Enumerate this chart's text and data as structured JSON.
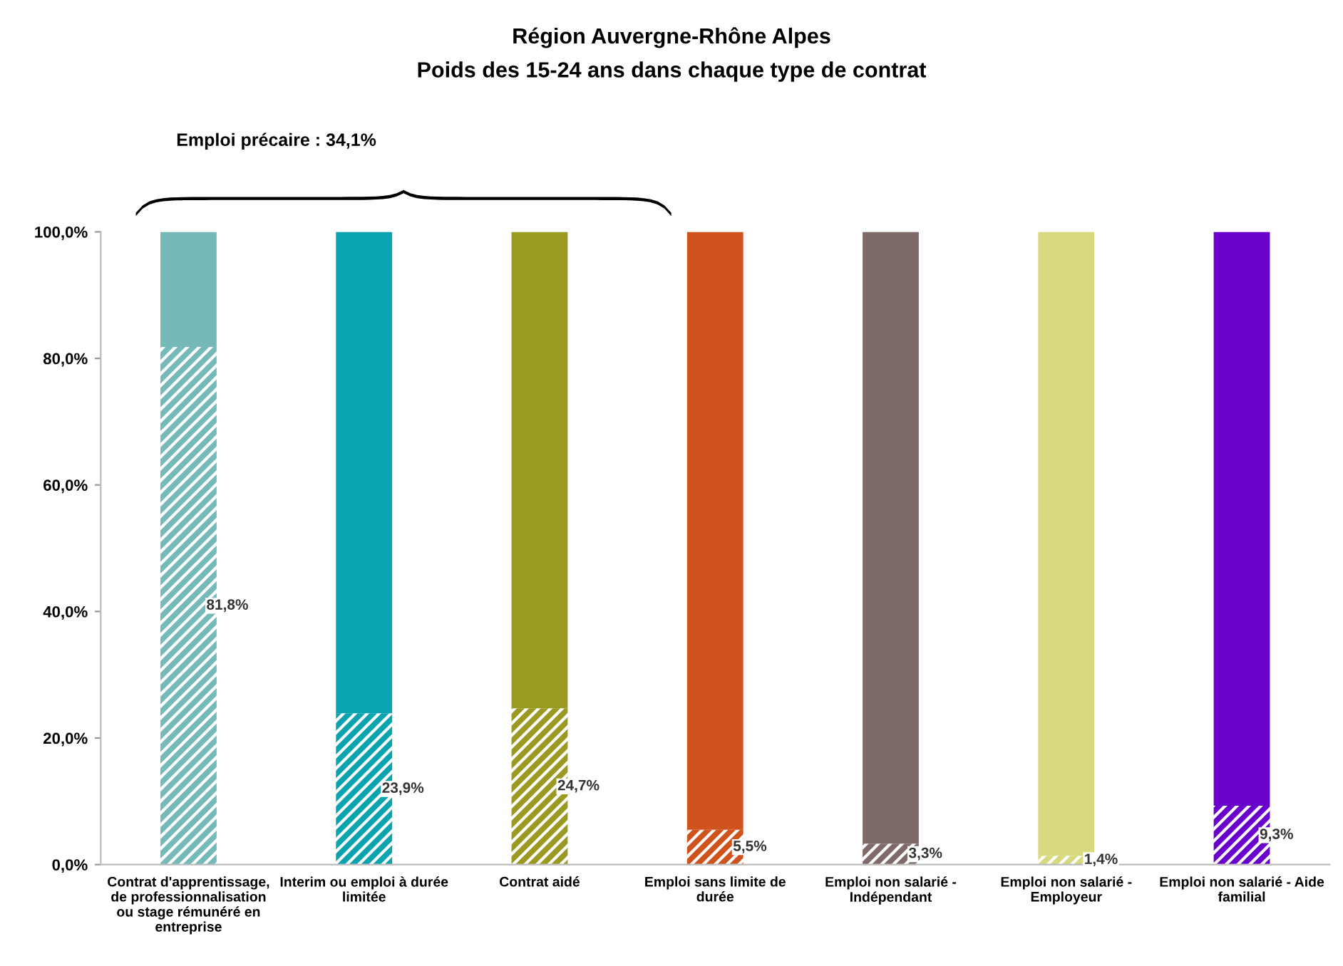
{
  "chart_data": {
    "type": "bar",
    "stacked": true,
    "title": "Région Auvergne-Rhône Alpes",
    "subtitle": "Poids des 15-24 ans dans chaque type de contrat",
    "categories": [
      "Contrat d'apprentissage,\nde professionnalisation\nou stage rémunéré en\nentreprise",
      "Interim ou emploi à durée\nlimitée",
      "Contrat aidé",
      "Emploi sans limite de\ndurée",
      "Emploi non salarié -\nIndépendant",
      "Emploi non salarié -\nEmployeur",
      "Emploi non salarié - Aide\nfamilial"
    ],
    "series": [
      {
        "colors": [
          "#76b9b9",
          "#0aa3b0",
          "#9a9a22",
          "#d0521d",
          "#7f6a6a",
          "#d8d87e",
          "#6a00cc"
        ],
        "values": [
          81.8,
          23.9,
          24.7,
          5.5,
          3.3,
          1.4,
          9.3
        ],
        "value_labels": [
          "81,8%",
          "23,9%",
          "24,7%",
          "5,5%",
          "3,3%",
          "1,4%",
          "9,3%"
        ]
      },
      {
        "colors": [
          "#76b9b9",
          "#0aa3b0",
          "#9a9a22",
          "#d0521d",
          "#7f6a6a",
          "#d8d87e",
          "#6a00cc"
        ],
        "values": [
          18.2,
          76.1,
          75.3,
          94.5,
          96.7,
          98.6,
          90.7
        ]
      }
    ],
    "ylim": [
      0,
      100
    ],
    "yticks": [
      {
        "value": 0,
        "label": "0,0%"
      },
      {
        "value": 20,
        "label": "20,0%"
      },
      {
        "value": 40,
        "label": "40,0%"
      },
      {
        "value": 60,
        "label": "60,0%"
      },
      {
        "value": 80,
        "label": "80,0%"
      },
      {
        "value": 100,
        "label": "100,0%"
      }
    ],
    "grid": false,
    "annotations": [
      "Emploi précaire : 34,1%"
    ]
  }
}
